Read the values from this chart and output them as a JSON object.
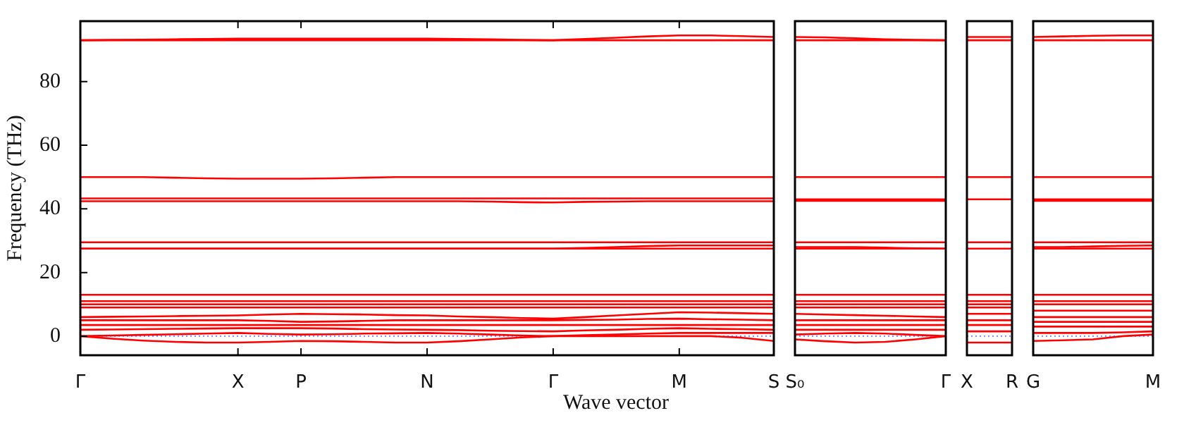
{
  "chart_data": [
    {
      "type": "line",
      "xlabel": "Wave vector",
      "ylabel": "Frequency (THz)",
      "categories": [
        "Γ",
        null,
        null,
        null,
        null,
        "X",
        null,
        "P",
        null,
        null,
        null,
        "N",
        null,
        null,
        null,
        "Γ",
        null,
        null,
        null,
        "M",
        null,
        null,
        "S"
      ],
      "ylim": [
        -6,
        99
      ],
      "yticks": [
        0,
        20,
        40,
        60,
        80
      ],
      "legend": false,
      "grid": false,
      "marker": "none",
      "ref_lines": [
        {
          "axis": "y",
          "value": 0,
          "color": "#7777ff",
          "line_style": "dotted"
        }
      ],
      "series": [
        {
          "color": "#ff0000",
          "values": [
            93,
            93,
            93,
            93,
            93,
            93,
            93,
            93,
            93,
            93,
            93,
            93,
            93,
            93,
            93,
            93,
            93,
            93,
            93,
            93,
            93,
            93,
            93
          ]
        },
        {
          "color": "#ff0000",
          "values": [
            93,
            93.1,
            93.2,
            93.3,
            93.4,
            93.5,
            93.5,
            93.5,
            93.5,
            93.5,
            93.5,
            93.5,
            93.4,
            93.3,
            93.1,
            93,
            93.4,
            93.8,
            94.2,
            94.5,
            94.5,
            94.3,
            94
          ]
        },
        {
          "color": "#ff0000",
          "values": [
            50,
            50,
            50,
            49.8,
            49.6,
            49.5,
            49.5,
            49.5,
            49.6,
            49.8,
            50,
            50,
            50,
            50,
            50,
            50,
            50,
            50,
            50,
            50,
            50,
            50,
            50
          ]
        },
        {
          "color": "#ff0000",
          "values": [
            43.3,
            43.3,
            43.3,
            43.3,
            43.3,
            43.3,
            43.3,
            43.3,
            43.3,
            43.3,
            43.3,
            43.3,
            43.3,
            43.3,
            43.3,
            43.3,
            43.3,
            43.3,
            43.3,
            43.3,
            43.3,
            43.3,
            43.3
          ]
        },
        {
          "color": "#ff0000",
          "values": [
            42.4,
            42.4,
            42.4,
            42.4,
            42.4,
            42.4,
            42.4,
            42.4,
            42.4,
            42.4,
            42.4,
            42.4,
            42.4,
            42.3,
            42.1,
            42,
            42.2,
            42.3,
            42.4,
            42.4,
            42.4,
            42.4,
            42.4
          ]
        },
        {
          "color": "#ff0000",
          "values": [
            29.5,
            29.5,
            29.5,
            29.5,
            29.5,
            29.5,
            29.5,
            29.5,
            29.5,
            29.5,
            29.5,
            29.5,
            29.5,
            29.5,
            29.5,
            29.5,
            29.5,
            29.5,
            29.5,
            29.5,
            29.5,
            29.5,
            29.5
          ]
        },
        {
          "color": "#ff0000",
          "values": [
            27.5,
            27.5,
            27.5,
            27.5,
            27.5,
            27.5,
            27.5,
            27.5,
            27.5,
            27.5,
            27.5,
            27.5,
            27.5,
            27.5,
            27.5,
            27.5,
            27.7,
            28,
            28.3,
            28.5,
            28.5,
            28.5,
            28.5
          ]
        },
        {
          "color": "#ff0000",
          "values": [
            27.5,
            27.5,
            27.5,
            27.5,
            27.5,
            27.5,
            27.5,
            27.5,
            27.5,
            27.5,
            27.5,
            27.5,
            27.5,
            27.5,
            27.5,
            27.5,
            27.5,
            27.5,
            27.5,
            27.5,
            27.5,
            27.5,
            27.5
          ]
        },
        {
          "color": "#ff0000",
          "values": [
            13,
            13,
            13,
            13,
            13,
            13,
            13,
            13,
            13,
            13,
            13,
            13,
            13,
            13,
            13,
            13,
            13,
            13,
            13,
            13,
            13,
            13,
            13
          ]
        },
        {
          "color": "#ff0000",
          "values": [
            11,
            11,
            11,
            11,
            11,
            11,
            11,
            11,
            11,
            11,
            11,
            11,
            11,
            11,
            11,
            11,
            11,
            11,
            11,
            11,
            11,
            11,
            11
          ]
        },
        {
          "color": "#ff0000",
          "values": [
            10,
            10,
            10,
            10,
            10,
            10,
            10,
            10,
            10,
            10,
            10,
            10,
            10,
            10,
            10,
            10,
            10,
            10,
            10,
            10,
            10,
            10,
            10
          ]
        },
        {
          "color": "#ff0000",
          "values": [
            9,
            9,
            9,
            9,
            9,
            9,
            9,
            9,
            9,
            9,
            9,
            9,
            9,
            9,
            9,
            9,
            9,
            9,
            9,
            9,
            9,
            9,
            9
          ]
        },
        {
          "color": "#ff0000",
          "values": [
            6,
            6.1,
            6.2,
            6.3,
            6.4,
            6.5,
            6.8,
            7,
            6.9,
            6.8,
            6.6,
            6.5,
            6.2,
            6,
            5.7,
            5.5,
            6,
            6.5,
            7,
            7.5,
            7.4,
            7.2,
            7
          ]
        },
        {
          "color": "#ff0000",
          "values": [
            5,
            5,
            5,
            5,
            5,
            5,
            4.8,
            4.5,
            4.6,
            4.8,
            5,
            5,
            5,
            5,
            5,
            5,
            5.1,
            5.2,
            5.4,
            5.5,
            5.3,
            5.2,
            5
          ]
        },
        {
          "color": "#ff0000",
          "values": [
            3.5,
            3.5,
            3.5,
            3.5,
            3.5,
            3.5,
            3.5,
            3.5,
            3.5,
            3.5,
            3.5,
            3.5,
            3.5,
            3.5,
            3.5,
            3.5,
            3.5,
            3.5,
            3.5,
            3.5,
            3.5,
            3.5,
            3.5
          ]
        },
        {
          "color": "#ff0000",
          "values": [
            2,
            2.1,
            2.2,
            2.3,
            2.4,
            2.5,
            2.5,
            2.5,
            2.4,
            2.2,
            2.1,
            2,
            1.9,
            1.7,
            1.6,
            1.5,
            1.8,
            2,
            2.3,
            2.5,
            2.3,
            2.2,
            2
          ]
        },
        {
          "color": "#ff0000",
          "values": [
            0,
            0.2,
            0.4,
            0.6,
            0.8,
            1,
            0.7,
            0.5,
            0.6,
            0.8,
            0.9,
            1,
            0.8,
            0.5,
            0.2,
            0,
            0.3,
            0.5,
            0.8,
            1,
            1,
            1,
            1
          ]
        },
        {
          "color": "#ff0000",
          "values": [
            0,
            -0.8,
            -1.4,
            -1.8,
            -2,
            -2,
            -1.8,
            -1.5,
            -1.6,
            -1.8,
            -2,
            -2,
            -1.6,
            -1,
            -0.4,
            0,
            0,
            0,
            0,
            0,
            0,
            -0.5,
            -1.5
          ]
        }
      ]
    },
    {
      "type": "line",
      "categories": [
        "S₀",
        null,
        null,
        null,
        null,
        "Γ"
      ],
      "ylim": [
        -6,
        99
      ],
      "yticks": [
        0,
        20,
        40,
        60,
        80
      ],
      "tick_labels": "x",
      "legend": false,
      "grid": false,
      "marker": "none",
      "ref_lines": [
        {
          "axis": "y",
          "value": 0,
          "color": "#7777ff",
          "line_style": "dotted"
        }
      ],
      "series": [
        {
          "color": "#ff0000",
          "values": [
            93,
            93,
            93,
            93,
            93,
            93
          ]
        },
        {
          "color": "#ff0000",
          "values": [
            94,
            93.9,
            93.6,
            93.3,
            93.1,
            93
          ]
        },
        {
          "color": "#ff0000",
          "values": [
            50,
            50,
            50,
            50,
            50,
            50
          ]
        },
        {
          "color": "#ff0000",
          "values": [
            43,
            43,
            43,
            43,
            43,
            43
          ]
        },
        {
          "color": "#ff0000",
          "values": [
            42.5,
            42.5,
            42.5,
            42.5,
            42.5,
            42.5
          ]
        },
        {
          "color": "#ff0000",
          "values": [
            29.5,
            29.5,
            29.5,
            29.5,
            29.5,
            29.5
          ]
        },
        {
          "color": "#ff0000",
          "values": [
            28,
            28,
            28,
            27.8,
            27.6,
            27.5
          ]
        },
        {
          "color": "#ff0000",
          "values": [
            27.5,
            27.5,
            27.5,
            27.5,
            27.5,
            27.5
          ]
        },
        {
          "color": "#ff0000",
          "values": [
            13,
            13,
            13,
            13,
            13,
            13
          ]
        },
        {
          "color": "#ff0000",
          "values": [
            11,
            11,
            11,
            11,
            11,
            11
          ]
        },
        {
          "color": "#ff0000",
          "values": [
            10,
            10,
            10,
            10,
            10,
            10
          ]
        },
        {
          "color": "#ff0000",
          "values": [
            9,
            9,
            9,
            9,
            9,
            9
          ]
        },
        {
          "color": "#ff0000",
          "values": [
            7,
            6.8,
            6.6,
            6.4,
            6.2,
            6
          ]
        },
        {
          "color": "#ff0000",
          "values": [
            5,
            5,
            5,
            5,
            5,
            5
          ]
        },
        {
          "color": "#ff0000",
          "values": [
            3.5,
            3.5,
            3.5,
            3.5,
            3.5,
            3.5
          ]
        },
        {
          "color": "#ff0000",
          "values": [
            2,
            2,
            2,
            2,
            2,
            2
          ]
        },
        {
          "color": "#ff0000",
          "values": [
            0.5,
            0.8,
            1,
            0.8,
            0.4,
            0
          ]
        },
        {
          "color": "#ff0000",
          "values": [
            -1,
            -1.6,
            -2,
            -1.8,
            -1,
            0
          ]
        }
      ]
    },
    {
      "type": "line",
      "categories": [
        "X",
        "R"
      ],
      "ylim": [
        -6,
        99
      ],
      "yticks": [
        0,
        20,
        40,
        60,
        80
      ],
      "tick_labels": "x",
      "legend": false,
      "grid": false,
      "marker": "none",
      "ref_lines": [
        {
          "axis": "y",
          "value": 0,
          "color": "#7777ff",
          "line_style": "dotted"
        }
      ],
      "series": [
        {
          "color": "#ff0000",
          "values": [
            93,
            93
          ]
        },
        {
          "color": "#ff0000",
          "values": [
            94,
            94
          ]
        },
        {
          "color": "#ff0000",
          "values": [
            50,
            50
          ]
        },
        {
          "color": "#ff0000",
          "values": [
            43,
            43
          ]
        },
        {
          "color": "#ff0000",
          "values": [
            29.5,
            29.5
          ]
        },
        {
          "color": "#ff0000",
          "values": [
            27.5,
            27.5
          ]
        },
        {
          "color": "#ff0000",
          "values": [
            13,
            13
          ]
        },
        {
          "color": "#ff0000",
          "values": [
            11,
            11
          ]
        },
        {
          "color": "#ff0000",
          "values": [
            10,
            10
          ]
        },
        {
          "color": "#ff0000",
          "values": [
            9,
            9
          ]
        },
        {
          "color": "#ff0000",
          "values": [
            7,
            7
          ]
        },
        {
          "color": "#ff0000",
          "values": [
            5,
            5
          ]
        },
        {
          "color": "#ff0000",
          "values": [
            3.5,
            3.5
          ]
        },
        {
          "color": "#ff0000",
          "values": [
            1.5,
            1.5
          ]
        },
        {
          "color": "#ff0000",
          "values": [
            -2,
            -2
          ]
        }
      ]
    },
    {
      "type": "line",
      "categories": [
        "G",
        null,
        null,
        null,
        "M"
      ],
      "ylim": [
        -6,
        99
      ],
      "yticks": [
        0,
        20,
        40,
        60,
        80
      ],
      "tick_labels": "x",
      "legend": false,
      "grid": false,
      "marker": "none",
      "ref_lines": [
        {
          "axis": "y",
          "value": 0,
          "color": "#7777ff",
          "line_style": "dotted"
        }
      ],
      "series": [
        {
          "color": "#ff0000",
          "values": [
            93,
            93,
            93,
            93,
            93
          ]
        },
        {
          "color": "#ff0000",
          "values": [
            94,
            94.2,
            94.4,
            94.5,
            94.5
          ]
        },
        {
          "color": "#ff0000",
          "values": [
            50,
            50,
            50,
            50,
            50
          ]
        },
        {
          "color": "#ff0000",
          "values": [
            43,
            43,
            43,
            43,
            43
          ]
        },
        {
          "color": "#ff0000",
          "values": [
            42.5,
            42.5,
            42.5,
            42.5,
            42.5
          ]
        },
        {
          "color": "#ff0000",
          "values": [
            29.5,
            29.5,
            29.5,
            29.5,
            29.5
          ]
        },
        {
          "color": "#ff0000",
          "values": [
            28,
            28,
            28.2,
            28.4,
            28.5
          ]
        },
        {
          "color": "#ff0000",
          "values": [
            27.5,
            27.5,
            27.5,
            27.5,
            27.5
          ]
        },
        {
          "color": "#ff0000",
          "values": [
            13,
            13,
            13,
            13,
            13
          ]
        },
        {
          "color": "#ff0000",
          "values": [
            11,
            11,
            11,
            11,
            11
          ]
        },
        {
          "color": "#ff0000",
          "values": [
            10,
            10,
            10,
            10,
            10
          ]
        },
        {
          "color": "#ff0000",
          "values": [
            8,
            8,
            8,
            8,
            8
          ]
        },
        {
          "color": "#ff0000",
          "values": [
            6,
            6,
            6,
            6,
            6
          ]
        },
        {
          "color": "#ff0000",
          "values": [
            4.5,
            4.5,
            4.5,
            4.5,
            4.5
          ]
        },
        {
          "color": "#ff0000",
          "values": [
            3,
            3,
            3,
            3,
            3
          ]
        },
        {
          "color": "#ff0000",
          "values": [
            1,
            1,
            1,
            1.2,
            1.5
          ]
        },
        {
          "color": "#ff0000",
          "values": [
            -1.5,
            -1.3,
            -1,
            0,
            0.5
          ]
        }
      ]
    }
  ]
}
